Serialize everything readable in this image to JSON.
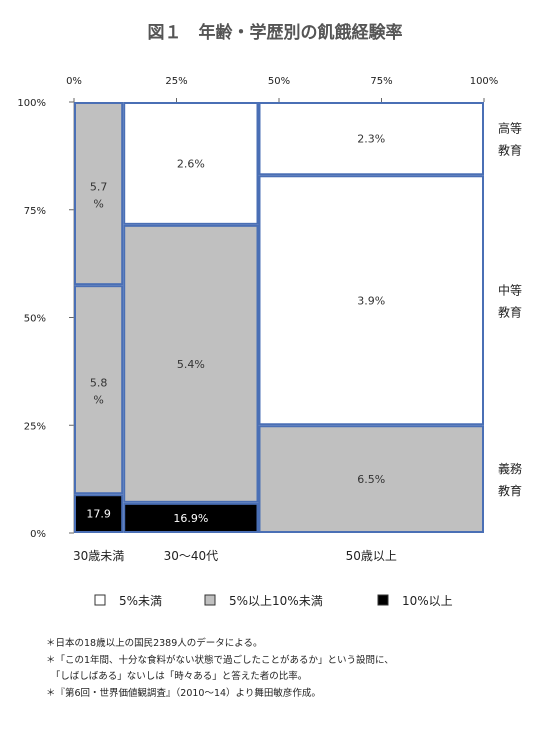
{
  "chart_data": {
    "type": "mosaic",
    "title": "図１　年齢・学歴別の飢餓経験率",
    "x_ticks": [
      "0%",
      "25%",
      "50%",
      "75%",
      "100%"
    ],
    "y_ticks": [
      "0%",
      "25%",
      "50%",
      "75%",
      "100%"
    ],
    "categories": [
      "30歳未満",
      "30～40代",
      "50歳以上"
    ],
    "x_boundaries": [
      0,
      0.12,
      0.45,
      1.0
    ],
    "education_levels": [
      "高等教育",
      "中等教育",
      "義務教育"
    ],
    "cells": [
      {
        "age": "30歳未満",
        "education": "義務教育",
        "y_start": 0,
        "y_end": 0.09,
        "rate": "17.9",
        "band": "10%以上"
      },
      {
        "age": "30歳未満",
        "education": "中等教育",
        "y_start": 0.09,
        "y_end": 0.575,
        "rate": "5.8%",
        "band": "5%以上10%未満"
      },
      {
        "age": "30歳未満",
        "education": "高等教育",
        "y_start": 0.575,
        "y_end": 1.0,
        "rate": "5.7%",
        "band": "5%以上10%未満"
      },
      {
        "age": "30～40代",
        "education": "義務教育",
        "y_start": 0,
        "y_end": 0.07,
        "rate": "16.9%",
        "band": "10%以上"
      },
      {
        "age": "30～40代",
        "education": "中等教育",
        "y_start": 0.07,
        "y_end": 0.715,
        "rate": "5.4%",
        "band": "5%以上10%未満"
      },
      {
        "age": "30～40代",
        "education": "高等教育",
        "y_start": 0.715,
        "y_end": 1.0,
        "rate": "2.6%",
        "band": "5%未満"
      },
      {
        "age": "50歳以上",
        "education": "義務教育",
        "y_start": 0,
        "y_end": 0.25,
        "rate": "6.5%",
        "band": "5%以上10%未満"
      },
      {
        "age": "50歳以上",
        "education": "中等教育",
        "y_start": 0.25,
        "y_end": 0.83,
        "rate": "3.9%",
        "band": "5%未満"
      },
      {
        "age": "50歳以上",
        "education": "高等教育",
        "y_start": 0.83,
        "y_end": 1.0,
        "rate": "2.3%",
        "band": "5%未満"
      }
    ],
    "legend": [
      {
        "label": "5%未満",
        "color": "#ffffff"
      },
      {
        "label": "5%以上10%未満",
        "color": "#c0c0c0"
      },
      {
        "label": "10%以上",
        "color": "#000000"
      }
    ],
    "border_color": "#4a6fb5",
    "grid": false,
    "legend_placement": "bottom"
  },
  "notes": [
    "＊日本の18歳以上の国民2389人のデータによる。",
    "＊「この1年間、十分な食料がない状態で過ごしたことがあるか」という設問に、",
    "　「しばしばある」ないしは「時々ある」と答えた者の比率。",
    "＊『第6回・世界価値観調査』（2010～14）より舞田敏彦作成。"
  ]
}
